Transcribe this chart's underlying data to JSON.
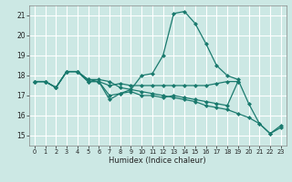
{
  "xlabel": "Humidex (Indice chaleur)",
  "bg_color": "#cce8e4",
  "grid_color": "#ffffff",
  "line_color": "#1a7a6e",
  "xlim": [
    -0.5,
    23.5
  ],
  "ylim": [
    14.5,
    21.5
  ],
  "yticks": [
    15,
    16,
    17,
    18,
    19,
    20,
    21
  ],
  "xticks": [
    0,
    1,
    2,
    3,
    4,
    5,
    6,
    7,
    8,
    9,
    10,
    11,
    12,
    13,
    14,
    15,
    16,
    17,
    18,
    19,
    20,
    21,
    22,
    23
  ],
  "series": [
    {
      "x": [
        0,
        1,
        2,
        3,
        4,
        5,
        6,
        7,
        8,
        9,
        10,
        11,
        12,
        13,
        14,
        15,
        16,
        17,
        18,
        19,
        20,
        21,
        22,
        23
      ],
      "y": [
        17.7,
        17.7,
        17.4,
        18.2,
        18.2,
        17.7,
        17.7,
        16.8,
        17.1,
        17.3,
        18.0,
        18.1,
        19.0,
        21.1,
        21.2,
        20.6,
        19.6,
        18.5,
        18.0,
        17.8,
        16.6,
        15.6,
        15.1,
        15.4
      ]
    },
    {
      "x": [
        0,
        1,
        2,
        3,
        4,
        5,
        6,
        7,
        8,
        9,
        10,
        11,
        12,
        13,
        14,
        15,
        16,
        17,
        18,
        19
      ],
      "y": [
        17.7,
        17.7,
        17.4,
        18.2,
        18.2,
        17.7,
        17.7,
        17.5,
        17.6,
        17.5,
        17.5,
        17.5,
        17.5,
        17.5,
        17.5,
        17.5,
        17.5,
        17.6,
        17.7,
        17.7
      ]
    },
    {
      "x": [
        0,
        1,
        2,
        3,
        4,
        5,
        6,
        7,
        8,
        9,
        10,
        11,
        12,
        13,
        14,
        15,
        16,
        17,
        18,
        19
      ],
      "y": [
        17.7,
        17.7,
        17.4,
        18.2,
        18.2,
        17.8,
        17.7,
        17.0,
        17.1,
        17.2,
        17.0,
        17.0,
        16.9,
        17.0,
        16.9,
        16.8,
        16.7,
        16.6,
        16.5,
        17.7
      ]
    },
    {
      "x": [
        0,
        1,
        2,
        3,
        4,
        5,
        6,
        7,
        8,
        9,
        10,
        11,
        12,
        13,
        14,
        15,
        16,
        17,
        18,
        19,
        20,
        21,
        22,
        23
      ],
      "y": [
        17.7,
        17.7,
        17.4,
        18.2,
        18.2,
        17.8,
        17.8,
        17.7,
        17.4,
        17.3,
        17.2,
        17.1,
        17.0,
        16.9,
        16.8,
        16.7,
        16.5,
        16.4,
        16.3,
        16.1,
        15.9,
        15.6,
        15.1,
        15.5
      ]
    }
  ],
  "marker": "D",
  "markersize": 2.0,
  "linewidth": 0.9
}
